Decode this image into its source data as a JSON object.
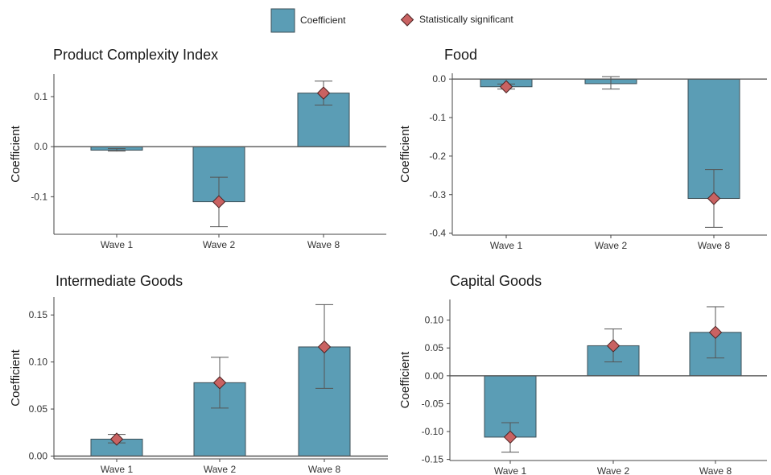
{
  "legend": {
    "items": [
      {
        "label": "Coefficient",
        "shape": "box",
        "color": "#5b9db5"
      },
      {
        "label": "Statistically significant",
        "shape": "diamond",
        "color": "#c96262"
      }
    ]
  },
  "colors": {
    "bar_fill": "#5b9db5",
    "bar_stroke": "#3d4f57",
    "marker_fill": "#c96262",
    "marker_stroke": "#4a2222",
    "errorbar": "#555555",
    "axis": "#444444"
  },
  "chart_data": [
    {
      "type": "bar",
      "title": "Product Complexity Index",
      "ylabel": "Coefficient",
      "categories": [
        "Wave 1",
        "Wave 2",
        "Wave 8"
      ],
      "values": [
        -0.007,
        -0.11,
        0.107
      ],
      "ci_low": [
        -0.009,
        -0.16,
        0.083
      ],
      "ci_high": [
        -0.004,
        -0.061,
        0.131
      ],
      "significant": [
        false,
        true,
        true
      ],
      "ylim": [
        -0.175,
        0.145
      ],
      "yticks": [
        0.1,
        0.0,
        -0.1
      ],
      "ytick_labels": [
        "0.1",
        "0.0",
        "-0.1"
      ],
      "baseline": 0,
      "grid": false
    },
    {
      "type": "bar",
      "title": "Food",
      "ylabel": "Coefficient",
      "categories": [
        "Wave 1",
        "Wave 2",
        "Wave 8"
      ],
      "values": [
        -0.02,
        -0.012,
        -0.31
      ],
      "ci_low": [
        -0.026,
        -0.026,
        -0.385
      ],
      "ci_high": [
        -0.013,
        0.006,
        -0.235
      ],
      "significant": [
        true,
        false,
        true
      ],
      "ylim": [
        -0.405,
        0.015
      ],
      "yticks": [
        0.0,
        -0.1,
        -0.2,
        -0.3,
        -0.4
      ],
      "ytick_labels": [
        "0.0",
        "-0.1",
        "-0.2",
        "-0.3",
        "-0.4"
      ],
      "baseline": 0,
      "grid": false
    },
    {
      "type": "bar",
      "title": "Intermediate Goods",
      "ylabel": "Coefficient",
      "categories": [
        "Wave 1",
        "Wave 2",
        "Wave 8"
      ],
      "values": [
        0.018,
        0.078,
        0.116
      ],
      "ci_low": [
        0.014,
        0.051,
        0.072
      ],
      "ci_high": [
        0.023,
        0.105,
        0.161
      ],
      "significant": [
        true,
        true,
        true
      ],
      "ylim": [
        -0.003,
        0.169
      ],
      "yticks": [
        0.0,
        0.05,
        0.1,
        0.15
      ],
      "ytick_labels": [
        "0.00",
        "0.05",
        "0.10",
        "0.15"
      ],
      "baseline": 0,
      "grid": false
    },
    {
      "type": "bar",
      "title": "Capital Goods",
      "ylabel": "Coefficient",
      "categories": [
        "Wave 1",
        "Wave 2",
        "Wave 8"
      ],
      "values": [
        -0.11,
        0.054,
        0.078
      ],
      "ci_low": [
        -0.137,
        0.025,
        0.032
      ],
      "ci_high": [
        -0.084,
        0.084,
        0.124
      ],
      "significant": [
        true,
        true,
        true
      ],
      "ylim": [
        -0.152,
        0.137
      ],
      "yticks": [
        0.1,
        0.05,
        0.0,
        -0.05,
        -0.1,
        -0.15
      ],
      "ytick_labels": [
        "0.10",
        "0.05",
        "0.00",
        "-0.05",
        "-0.10",
        "-0.15"
      ],
      "baseline": 0,
      "grid": false
    }
  ]
}
